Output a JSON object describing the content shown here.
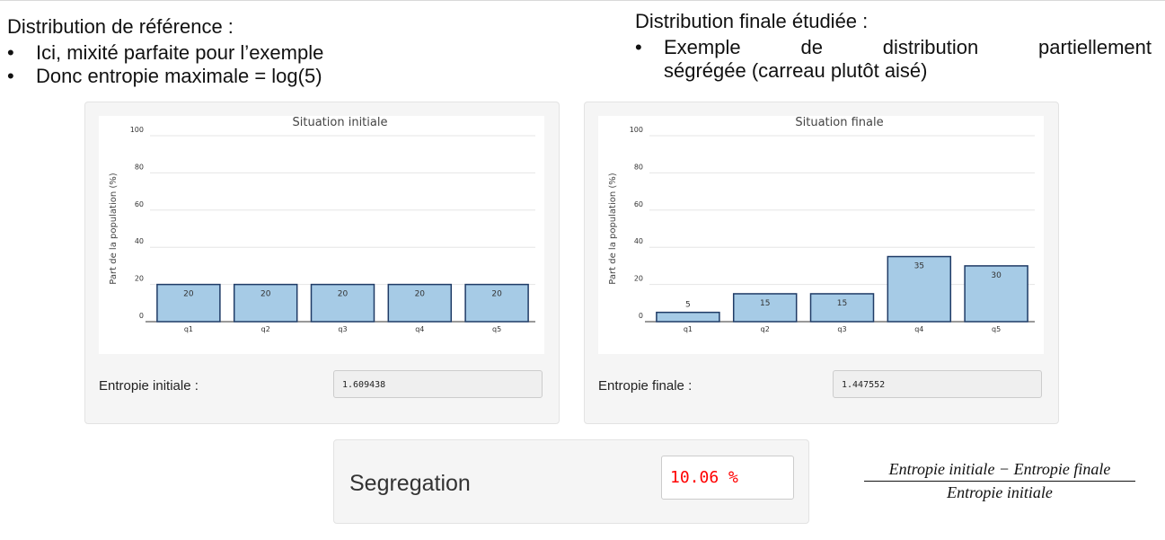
{
  "left_heading": "Distribution de référence :",
  "left_bullets": [
    "Ici, mixité parfaite pour l’exemple",
    "Donc entropie maximale = log(5)"
  ],
  "right_heading": "Distribution finale étudiée :",
  "right_bullet_line1": [
    "Exemple",
    "de",
    "distribution",
    "partiellement"
  ],
  "right_bullet_line2": "ségrégée (carreau plutôt aisé)",
  "panel_initial": {
    "entropy_label": "Entropie initiale :",
    "entropy_value": "1.609438"
  },
  "panel_final": {
    "entropy_label": "Entropie finale :",
    "entropy_value": "1.447552"
  },
  "segregation": {
    "label": "Segregation",
    "value": "10.06 %",
    "value_color": "#ff0000"
  },
  "formula": {
    "numerator": "Entropie initiale − Entropie finale",
    "denominator": "Entropie initiale"
  },
  "colors": {
    "bar_fill": "#a6cbe6",
    "bar_stroke": "#1f3b66",
    "grid": "#e6e6e6"
  },
  "chart_data": [
    {
      "type": "bar",
      "title": "Situation initiale",
      "ylabel": "Part de la population (%)",
      "categories": [
        "q1",
        "q2",
        "q3",
        "q4",
        "q5"
      ],
      "values": [
        20,
        20,
        20,
        20,
        20
      ],
      "data_labels": [
        "20",
        "20",
        "20",
        "20",
        "20"
      ],
      "ylim": [
        0,
        100
      ],
      "yticks": [
        0,
        20,
        40,
        60,
        80,
        100
      ],
      "grid": true
    },
    {
      "type": "bar",
      "title": "Situation finale",
      "ylabel": "Part de la population (%)",
      "categories": [
        "q1",
        "q2",
        "q3",
        "q4",
        "q5"
      ],
      "values": [
        5,
        15,
        15,
        35,
        30
      ],
      "data_labels": [
        "5",
        "15",
        "15",
        "35",
        "30"
      ],
      "ylim": [
        0,
        100
      ],
      "yticks": [
        0,
        20,
        40,
        60,
        80,
        100
      ],
      "grid": true
    }
  ]
}
